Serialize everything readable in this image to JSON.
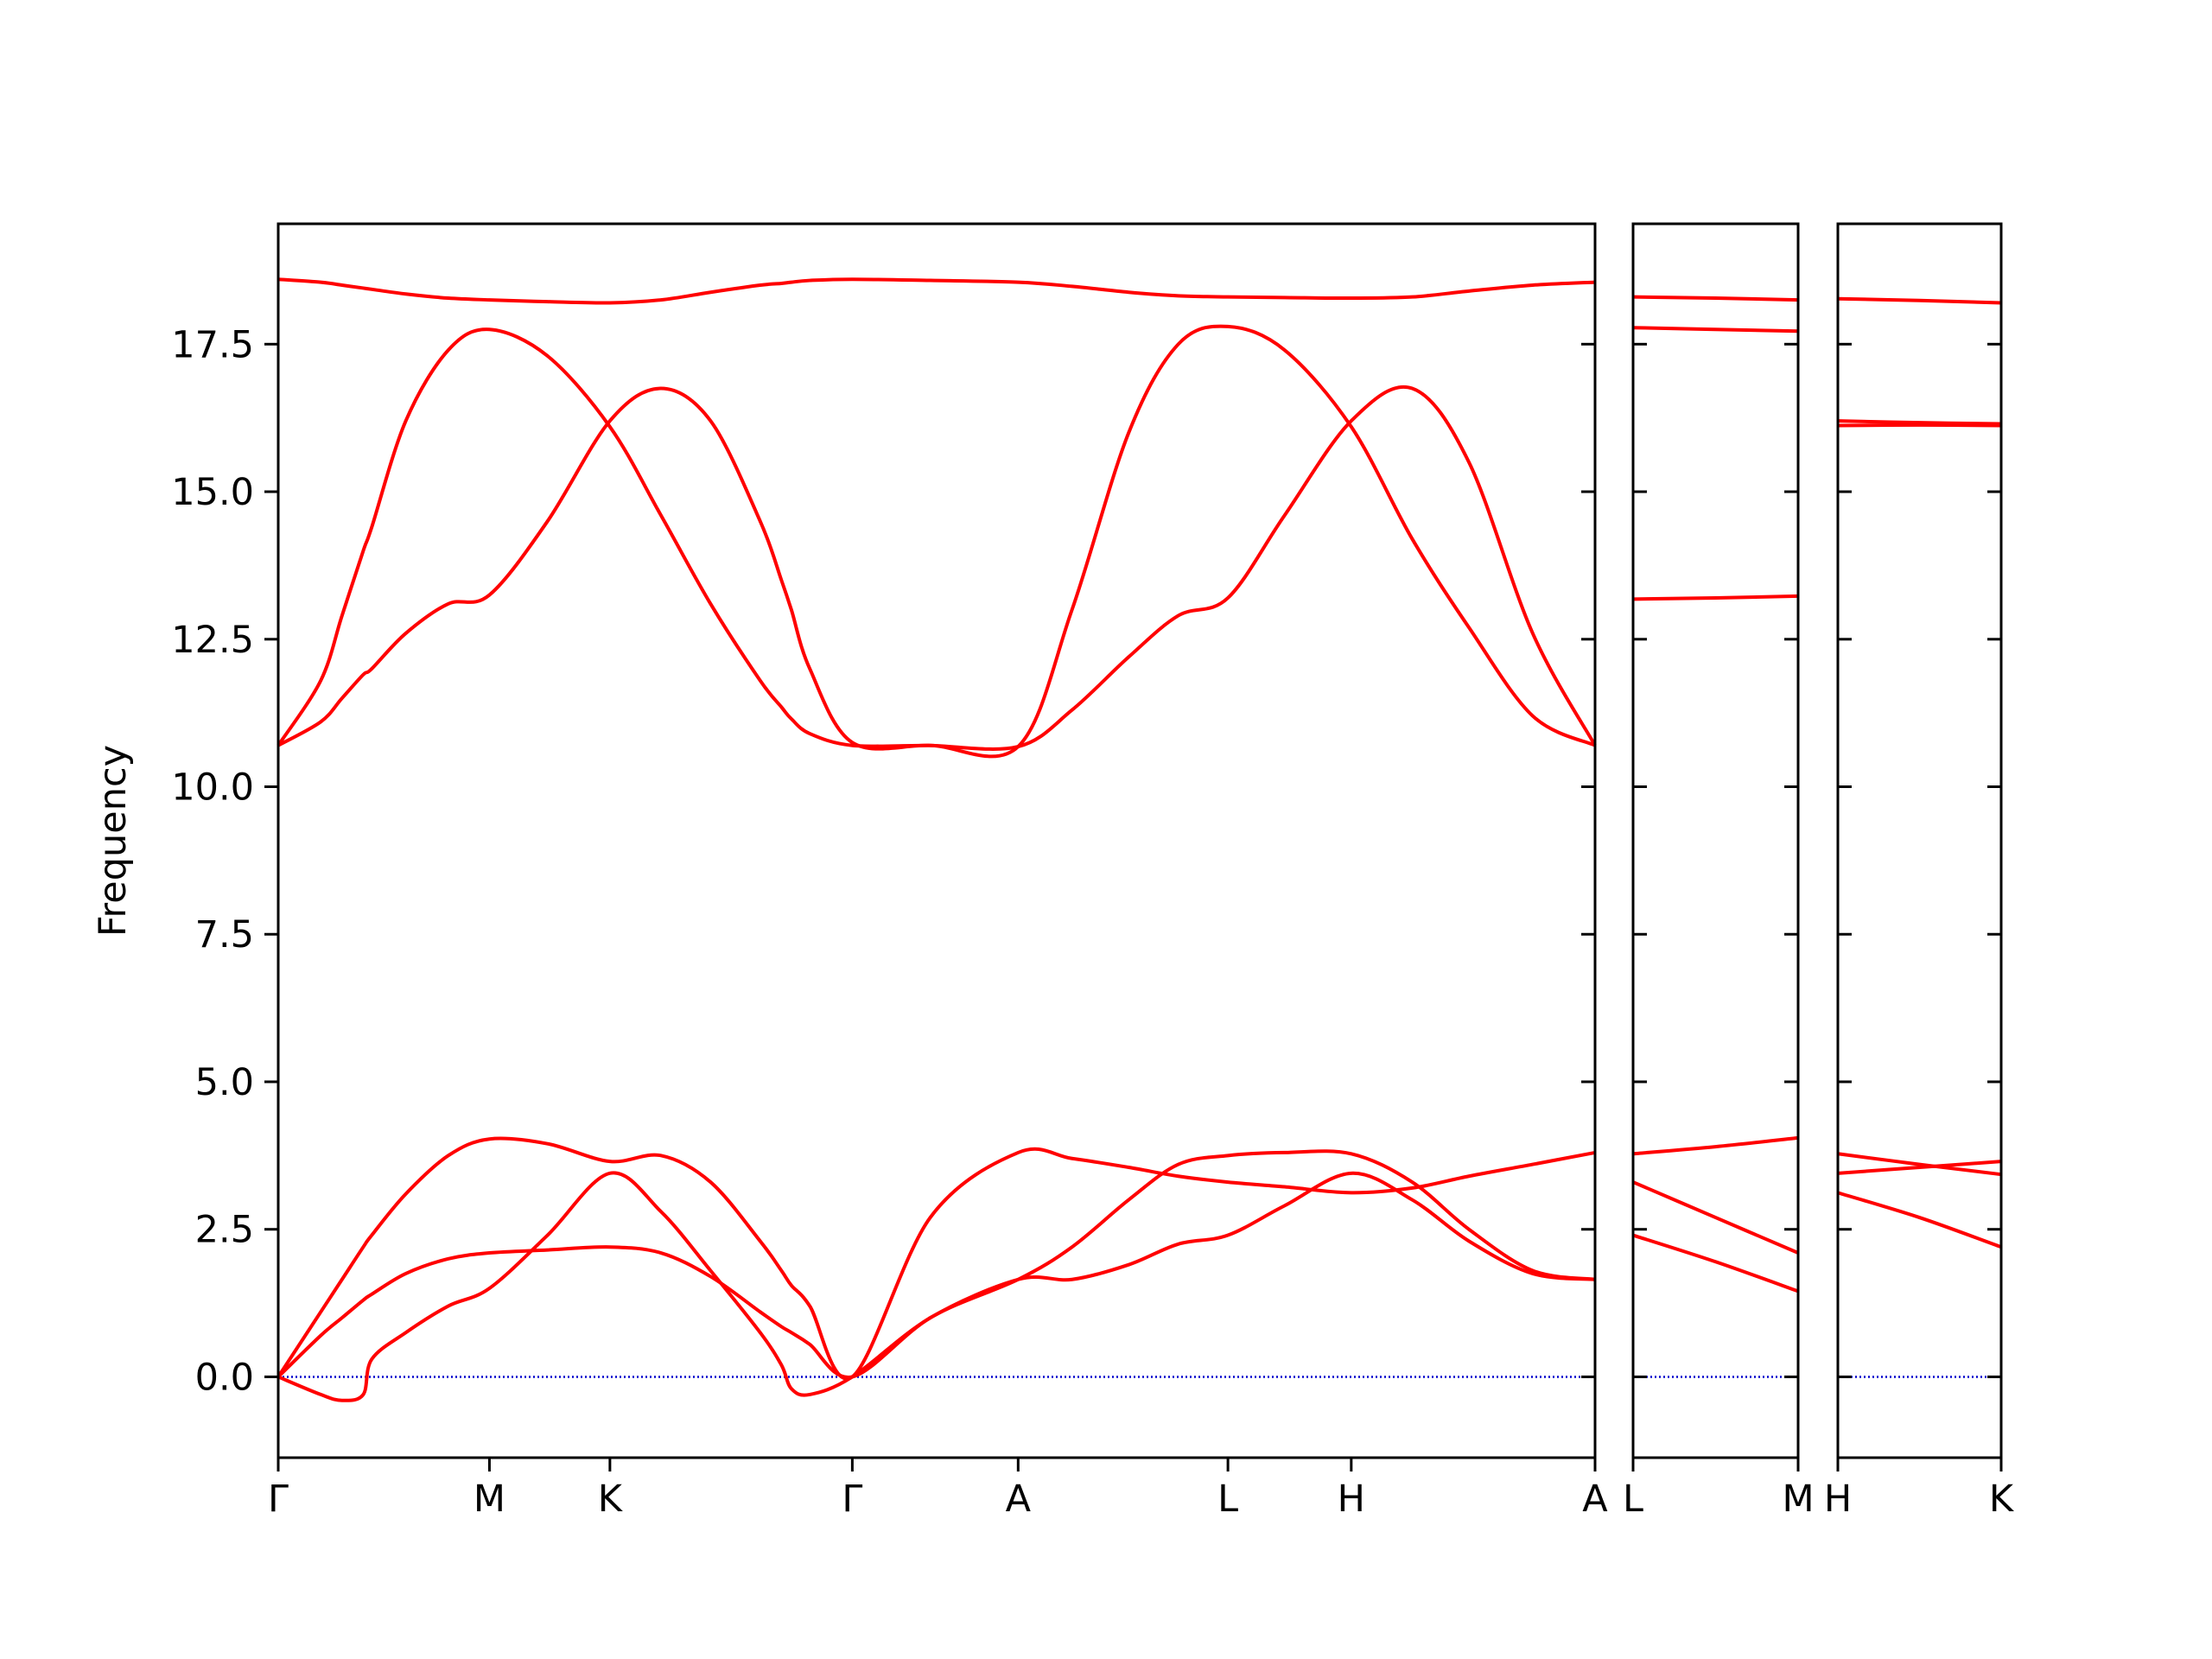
{
  "chart_data": [
    {
      "type": "line",
      "ylabel": "Frequency",
      "show_ytick_labels": true,
      "xlim": [
        0,
        9.29
      ],
      "ylim": [
        -1.37,
        19.54
      ],
      "xticks": [
        {
          "value": 0,
          "label": "Γ"
        },
        {
          "value": 1.49,
          "label": "M"
        },
        {
          "value": 2.34,
          "label": "K"
        },
        {
          "value": 4.05,
          "label": "Γ"
        },
        {
          "value": 5.22,
          "label": "A"
        },
        {
          "value": 6.7,
          "label": "L"
        },
        {
          "value": 7.57,
          "label": "H"
        },
        {
          "value": 9.29,
          "label": "A"
        }
      ],
      "yticks": [
        {
          "value": 0,
          "label": "0.0"
        },
        2.5,
        {
          "value": 5,
          "label": "5.0"
        },
        7.5,
        {
          "value": 10,
          "label": "10.0"
        },
        12.5,
        {
          "value": 15,
          "label": "15.0"
        },
        17.5
      ],
      "hline": 0,
      "hline_color": "#0000cc",
      "x": [
        0,
        0.3,
        0.45,
        0.6,
        0.66,
        0.9,
        1.2,
        1.49,
        1.9,
        2.34,
        2.7,
        3.05,
        3.4,
        3.55,
        3.62,
        3.75,
        4.05,
        4.6,
        5.22,
        5.6,
        6.0,
        6.35,
        6.7,
        7.1,
        7.57,
        8.0,
        8.4,
        8.85,
        9.29
      ],
      "series": [
        {
          "color": "#ff0000",
          "values": [
            0,
            -0.3,
            -0.4,
            -0.3,
            0.3,
            0.75,
            1.2,
            1.5,
            2.4,
            3.45,
            2.8,
            1.8,
            0.75,
            0.2,
            -0.2,
            -0.3,
            0,
            1.0,
            1.65,
            1.65,
            1.9,
            2.25,
            2.4,
            2.9,
            3.45,
            3.0,
            2.3,
            1.75,
            1.65
          ]
        },
        {
          "color": "#ff0000",
          "values": [
            0,
            0.7,
            1.0,
            1.3,
            1.4,
            1.75,
            2.0,
            2.1,
            2.15,
            2.2,
            2.1,
            1.7,
            1.1,
            0.85,
            0.75,
            0.55,
            0,
            1.0,
            1.65,
            2.2,
            3.0,
            3.6,
            3.75,
            3.8,
            3.78,
            3.3,
            2.5,
            1.8,
            1.65
          ]
        },
        {
          "color": "#ff0000",
          "values": [
            0,
            1.1,
            1.65,
            2.2,
            2.4,
            3.1,
            3.75,
            4.03,
            3.95,
            3.65,
            3.75,
            3.3,
            2.3,
            1.8,
            1.55,
            1.2,
            0,
            2.7,
            3.8,
            3.7,
            3.55,
            3.4,
            3.3,
            3.22,
            3.12,
            3.2,
            3.4,
            3.6,
            3.8
          ]
        },
        {
          "color": "#ff0000",
          "values": [
            10.7,
            11.1,
            11.5,
            11.9,
            12.0,
            12.6,
            13.1,
            13.25,
            14.5,
            16.2,
            16.75,
            16.2,
            14.5,
            13.5,
            13.0,
            12.0,
            10.75,
            10.7,
            10.68,
            11.3,
            12.2,
            12.9,
            13.2,
            14.6,
            16.2,
            16.75,
            15.5,
            12.6,
            10.7
          ]
        },
        {
          "color": "#ff0000",
          "values": [
            10.7,
            11.8,
            12.9,
            14.0,
            14.4,
            16.2,
            17.4,
            17.75,
            17.3,
            16.1,
            14.6,
            13.1,
            11.8,
            11.35,
            11.15,
            10.9,
            10.7,
            10.7,
            10.68,
            13.0,
            16.0,
            17.5,
            17.8,
            17.4,
            16.1,
            14.2,
            12.7,
            11.2,
            10.7
          ]
        },
        {
          "color": "#ff0000",
          "values": [
            18.6,
            18.55,
            18.5,
            18.45,
            18.43,
            18.35,
            18.28,
            18.25,
            18.22,
            18.2,
            18.25,
            18.38,
            18.5,
            18.53,
            18.55,
            18.58,
            18.6,
            18.58,
            18.55,
            18.48,
            18.38,
            18.32,
            18.3,
            18.29,
            18.28,
            18.3,
            18.4,
            18.5,
            18.55
          ]
        }
      ]
    },
    {
      "type": "line",
      "show_ytick_labels": false,
      "xlim": [
        0,
        1.16
      ],
      "ylim": [
        -1.37,
        19.54
      ],
      "xticks": [
        {
          "value": 0,
          "label": "L"
        },
        {
          "value": 1.16,
          "label": "M"
        }
      ],
      "yticks": [
        0,
        2.5,
        5,
        7.5,
        10,
        12.5,
        15,
        17.5
      ],
      "hline": 0,
      "hline_color": "#0000cc",
      "x": [
        0,
        0.58,
        1.16
      ],
      "series": [
        {
          "color": "#ff0000",
          "values": [
            2.4,
            1.95,
            1.45
          ]
        },
        {
          "color": "#ff0000",
          "values": [
            3.3,
            2.7,
            2.1
          ]
        },
        {
          "color": "#ff0000",
          "values": [
            3.78,
            3.9,
            4.05
          ]
        },
        {
          "color": "#ff0000",
          "values": [
            13.18,
            13.2,
            13.23
          ]
        },
        {
          "color": "#ff0000",
          "values": [
            17.78,
            17.75,
            17.72
          ]
        },
        {
          "color": "#ff0000",
          "values": [
            18.3,
            18.28,
            18.25
          ]
        }
      ]
    },
    {
      "type": "line",
      "show_ytick_labels": false,
      "xlim": [
        0,
        1.15
      ],
      "ylim": [
        -1.37,
        19.54
      ],
      "xticks": [
        {
          "value": 0,
          "label": "H"
        },
        {
          "value": 1.15,
          "label": "K"
        }
      ],
      "yticks": [
        0,
        2.5,
        5,
        7.5,
        10,
        12.5,
        15,
        17.5
      ],
      "hline": 0,
      "hline_color": "#0000cc",
      "x": [
        0,
        0.575,
        1.15
      ],
      "series": [
        {
          "color": "#ff0000",
          "values": [
            3.12,
            2.7,
            2.2
          ]
        },
        {
          "color": "#ff0000",
          "values": [
            3.45,
            3.55,
            3.65
          ]
        },
        {
          "color": "#ff0000",
          "values": [
            3.78,
            3.6,
            3.43
          ]
        },
        {
          "color": "#ff0000",
          "values": [
            16.12,
            16.13,
            16.12
          ]
        },
        {
          "color": "#ff0000",
          "values": [
            16.2,
            16.17,
            16.15
          ]
        },
        {
          "color": "#ff0000",
          "values": [
            18.27,
            18.24,
            18.2
          ]
        }
      ]
    }
  ]
}
